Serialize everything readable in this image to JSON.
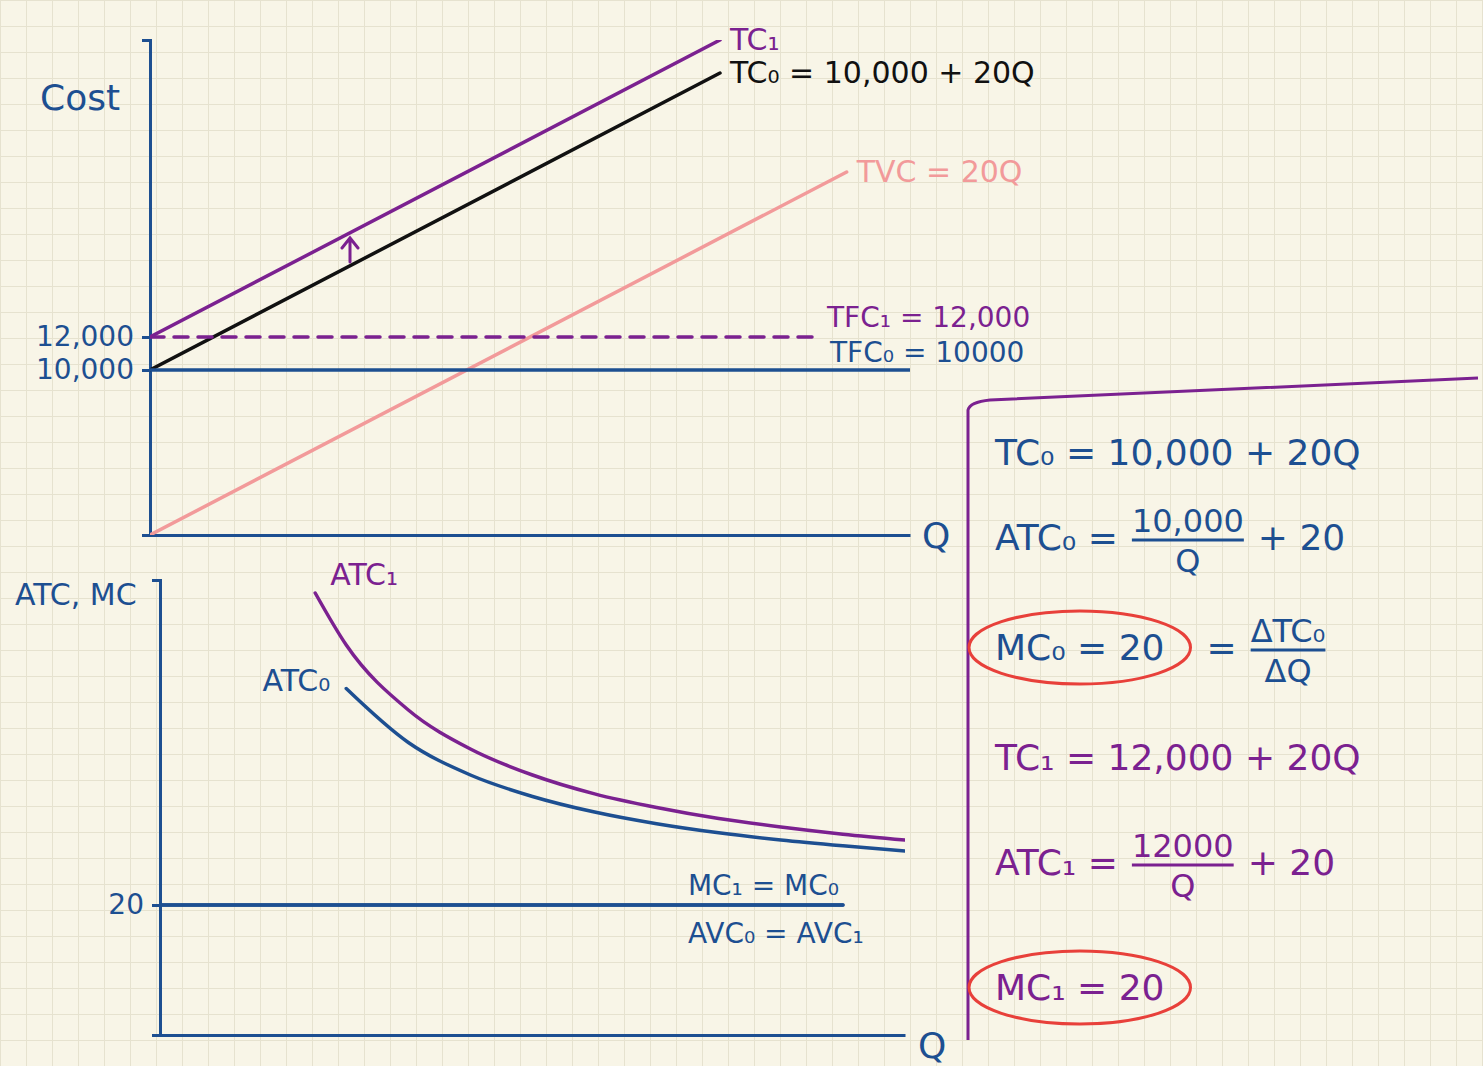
{
  "chart_data": [
    {
      "type": "line",
      "xlabel": "Q",
      "ylabel": "Cost",
      "xlim": [
        0,
        1200
      ],
      "ylim": [
        0,
        30000
      ],
      "yticks": [
        {
          "value": 10000,
          "label": "10,000"
        },
        {
          "value": 12000,
          "label": "12,000"
        }
      ],
      "tick_labels": "y",
      "grid": false,
      "series": [
        {
          "name": "TC₁",
          "color": "#7b2190",
          "x": [
            0,
            900
          ],
          "values": [
            12000,
            30000
          ]
        },
        {
          "name": "TC₀ = 10,000 + 20Q",
          "color": "#111111",
          "x": [
            0,
            900
          ],
          "values": [
            10000,
            28000
          ]
        },
        {
          "name": "TVC = 20Q",
          "color": "#f29a9a",
          "x": [
            0,
            1100
          ],
          "values": [
            0,
            22000
          ]
        },
        {
          "name": "TFC₁ = 12,000",
          "color": "#7b2190",
          "line_style": "dashed",
          "x": [
            0,
            1050
          ],
          "values": [
            12000,
            12000
          ]
        },
        {
          "name": "TFC₀ = 10000",
          "color": "#1d4f91",
          "x": [
            0,
            1200
          ],
          "values": [
            10000,
            10000
          ]
        }
      ]
    },
    {
      "type": "line",
      "xlabel": "Q",
      "ylabel": "ATC, MC",
      "xlim": [
        0,
        1200
      ],
      "ylim": [
        0,
        70
      ],
      "yticks": [
        20
      ],
      "tick_labels": "y",
      "grid": false,
      "series": [
        {
          "name": "ATC₁",
          "color": "#7b2190",
          "x": [
            250,
            300,
            400,
            500,
            600,
            700,
            800,
            900,
            1000,
            1100,
            1200
          ],
          "values": [
            68,
            60,
            50,
            44,
            40,
            37.1,
            35,
            33.3,
            32,
            30.9,
            30
          ]
        },
        {
          "name": "ATC₀",
          "color": "#1d4f91",
          "x": [
            300,
            400,
            500,
            600,
            700,
            800,
            900,
            1000,
            1100,
            1200
          ],
          "values": [
            53.3,
            45,
            40,
            36.7,
            34.3,
            32.5,
            31.1,
            30,
            29.1,
            28.3
          ]
        },
        {
          "name": "MC₁ = MC₀",
          "color": "#1d4f91",
          "x": [
            0,
            1100
          ],
          "values": [
            20,
            20
          ]
        },
        {
          "name": "AVC₀ = AVC₁",
          "color": "#1d4f91",
          "x": [
            0,
            1100
          ],
          "values": [
            20,
            20
          ]
        }
      ]
    }
  ],
  "panel": {
    "equations": [
      {
        "color": "#1d4f91",
        "segments": [
          {
            "text": "TC₀ = 10,000 + 20Q"
          }
        ]
      },
      {
        "color": "#1d4f91",
        "segments": [
          {
            "text": "ATC₀ ="
          },
          {
            "num": "10,000",
            "den": "Q"
          },
          {
            "text": "+ 20"
          }
        ]
      },
      {
        "color": "#1d4f91",
        "segments": [
          {
            "text": "MC₀ = 20"
          },
          {
            "text": "="
          },
          {
            "num": "ΔTC₀",
            "den": "ΔQ"
          }
        ]
      },
      {
        "color": "#7b2190",
        "segments": [
          {
            "text": "TC₁ = 12,000 + 20Q"
          }
        ]
      },
      {
        "color": "#7b2190",
        "segments": [
          {
            "text": "ATC₁ ="
          },
          {
            "num": "12000",
            "den": "Q"
          },
          {
            "text": "+ 20"
          }
        ]
      },
      {
        "color": "#7b2190",
        "segments": [
          {
            "text": "MC₁ = 20"
          }
        ]
      }
    ]
  }
}
